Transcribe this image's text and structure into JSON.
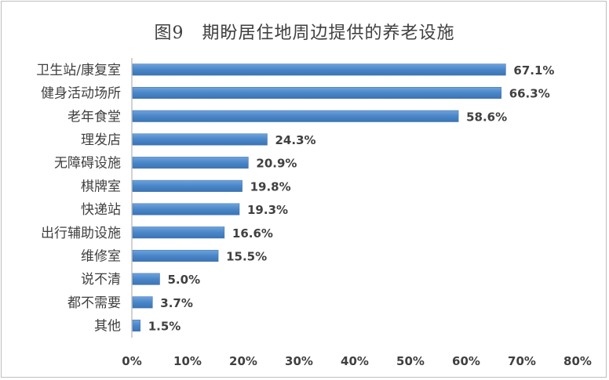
{
  "chart_data": {
    "type": "bar",
    "orientation": "horizontal",
    "title": "图9　期盼居住地周边提供的养老设施",
    "categories": [
      "卫生站/康复室",
      "健身活动场所",
      "老年食堂",
      "理发店",
      "无障碍设施",
      "棋牌室",
      "快递站",
      "出行辅助设施",
      "维修室",
      "说不清",
      "都不需要",
      "其他"
    ],
    "values": [
      67.1,
      66.3,
      58.6,
      24.3,
      20.9,
      19.8,
      19.3,
      16.6,
      15.5,
      5.0,
      3.7,
      1.5
    ],
    "value_labels": [
      "67.1%",
      "66.3%",
      "58.6%",
      "24.3%",
      "20.9%",
      "19.8%",
      "19.3%",
      "16.6%",
      "15.5%",
      "5.0%",
      "3.7%",
      "1.5%"
    ],
    "xlim": [
      0,
      80
    ],
    "x_ticks": [
      "0%",
      "10%",
      "20%",
      "30%",
      "40%",
      "50%",
      "60%",
      "70%",
      "80%"
    ],
    "grid": false,
    "legend": "none",
    "bar_color": "#4a86c8"
  }
}
